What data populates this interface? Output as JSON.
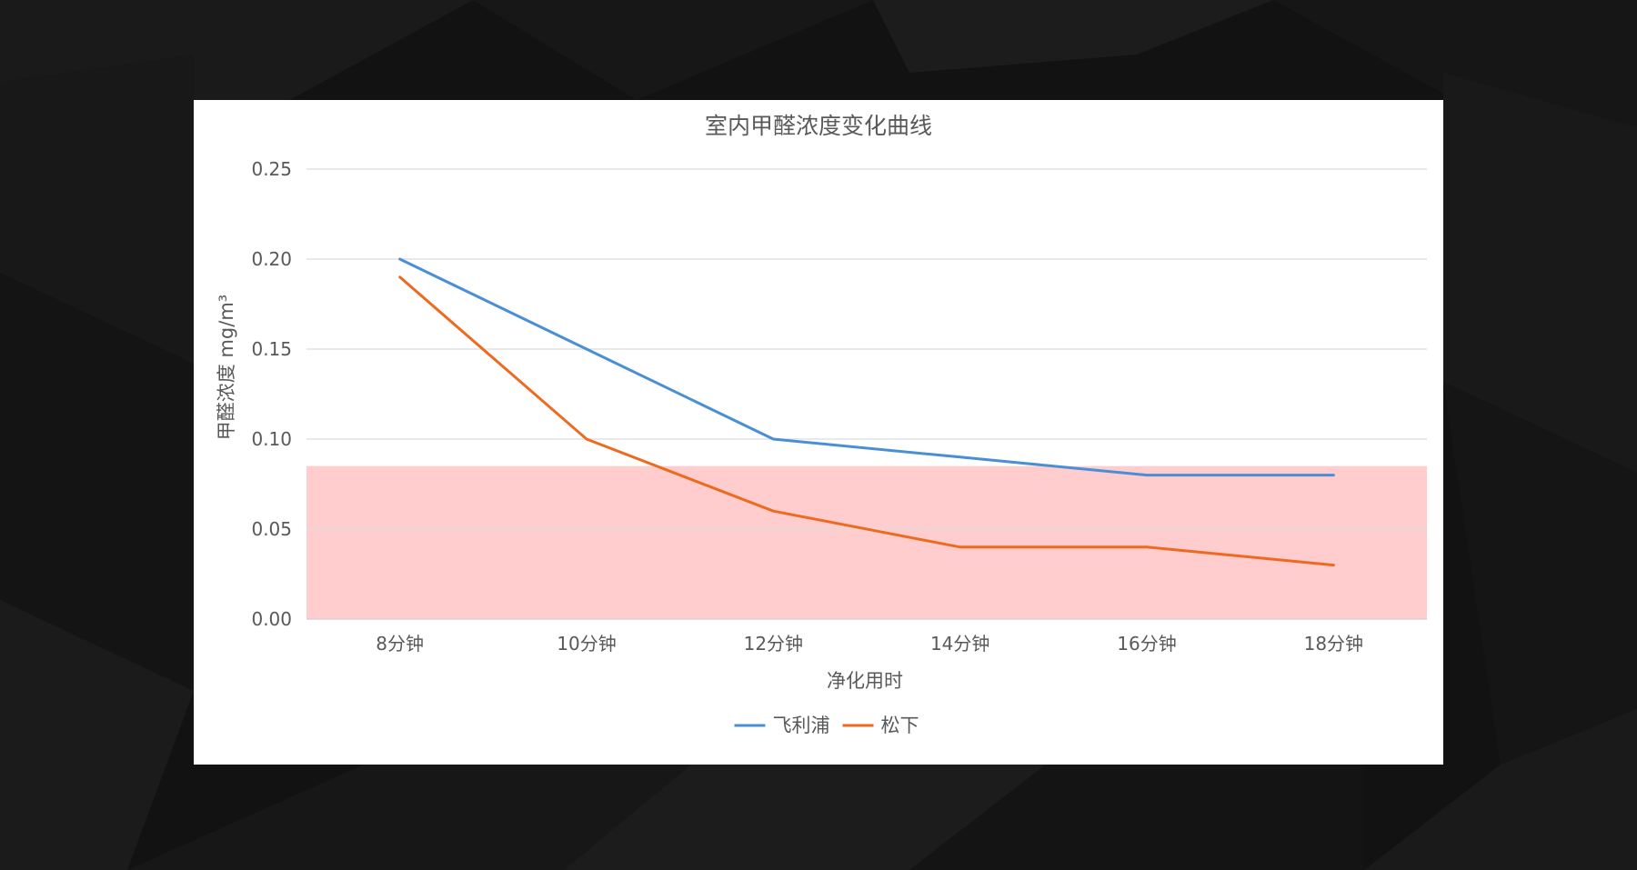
{
  "chart_data": {
    "type": "line",
    "title": "室内甲醛浓度变化曲线",
    "xlabel": "净化用时",
    "ylabel": "甲醛浓度 mg/m³",
    "categories": [
      "8分钟",
      "10分钟",
      "12分钟",
      "14分钟",
      "16分钟",
      "18分钟"
    ],
    "series": [
      {
        "name": "飞利浦",
        "color": "#4A8FD6",
        "values": [
          0.2,
          0.15,
          0.1,
          0.09,
          0.08,
          0.08
        ]
      },
      {
        "name": "松下",
        "color": "#ED6A1E",
        "values": [
          0.19,
          0.1,
          0.06,
          0.04,
          0.04,
          0.03
        ]
      }
    ],
    "ylim": [
      0,
      0.25
    ],
    "yticks": [
      "0.00",
      "0.05",
      "0.10",
      "0.15",
      "0.20",
      "0.25"
    ],
    "grid": true,
    "legend": "bottom-center",
    "highlight_band": {
      "from": 0,
      "to": 0.085,
      "color": "#FFCDCD"
    }
  }
}
